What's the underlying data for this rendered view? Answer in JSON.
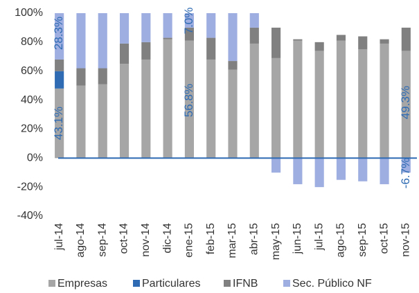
{
  "chart_data": {
    "type": "bar",
    "stacked": true,
    "categories": [
      "jul-14",
      "ago-14",
      "sep-14",
      "oct-14",
      "nov-14",
      "dic-14",
      "ene-15",
      "feb-15",
      "mar-15",
      "abr-15",
      "may-15",
      "jun-15",
      "jul-15",
      "ago-15",
      "sep-15",
      "oct-15",
      "nov-15"
    ],
    "series": [
      {
        "name": "Empresas",
        "color": "#a6a6a6",
        "values": [
          48,
          50,
          51,
          65,
          68,
          82,
          81,
          68,
          61,
          79,
          69,
          81,
          74,
          81,
          75,
          79,
          74
        ]
      },
      {
        "name": "Particulares",
        "color": "#2e6bb3",
        "values": [
          12,
          0,
          0,
          0,
          0,
          0,
          0,
          0,
          0,
          0,
          0,
          0,
          0,
          0,
          0,
          0,
          0
        ]
      },
      {
        "name": "IFNB",
        "color": "#808080",
        "values": [
          8,
          12,
          11,
          14,
          12,
          1,
          9,
          15,
          6,
          11,
          21,
          1,
          6,
          4,
          9,
          3,
          16
        ]
      },
      {
        "name": "Sec. Público NF",
        "color": "#9eaee0",
        "values": [
          32,
          38,
          38,
          21,
          20,
          17,
          10,
          17,
          33,
          10,
          -10,
          -18,
          -20,
          -15,
          -16,
          -18,
          -10
        ]
      }
    ],
    "ylim": [
      -40,
      100
    ],
    "yticks": [
      {
        "value": -40,
        "label": "-40%"
      },
      {
        "value": -20,
        "label": "-20%"
      },
      {
        "value": 0,
        "label": "0%"
      },
      {
        "value": 20,
        "label": "20%"
      },
      {
        "value": 40,
        "label": "40%"
      },
      {
        "value": 60,
        "label": "60%"
      },
      {
        "value": 80,
        "label": "80%"
      },
      {
        "value": 100,
        "label": "100%"
      }
    ],
    "annotations": [
      "43.1%",
      "28.3%",
      "7.0%",
      "56.8%",
      "49.3%",
      "-6.7%"
    ],
    "legend": "bottom"
  }
}
